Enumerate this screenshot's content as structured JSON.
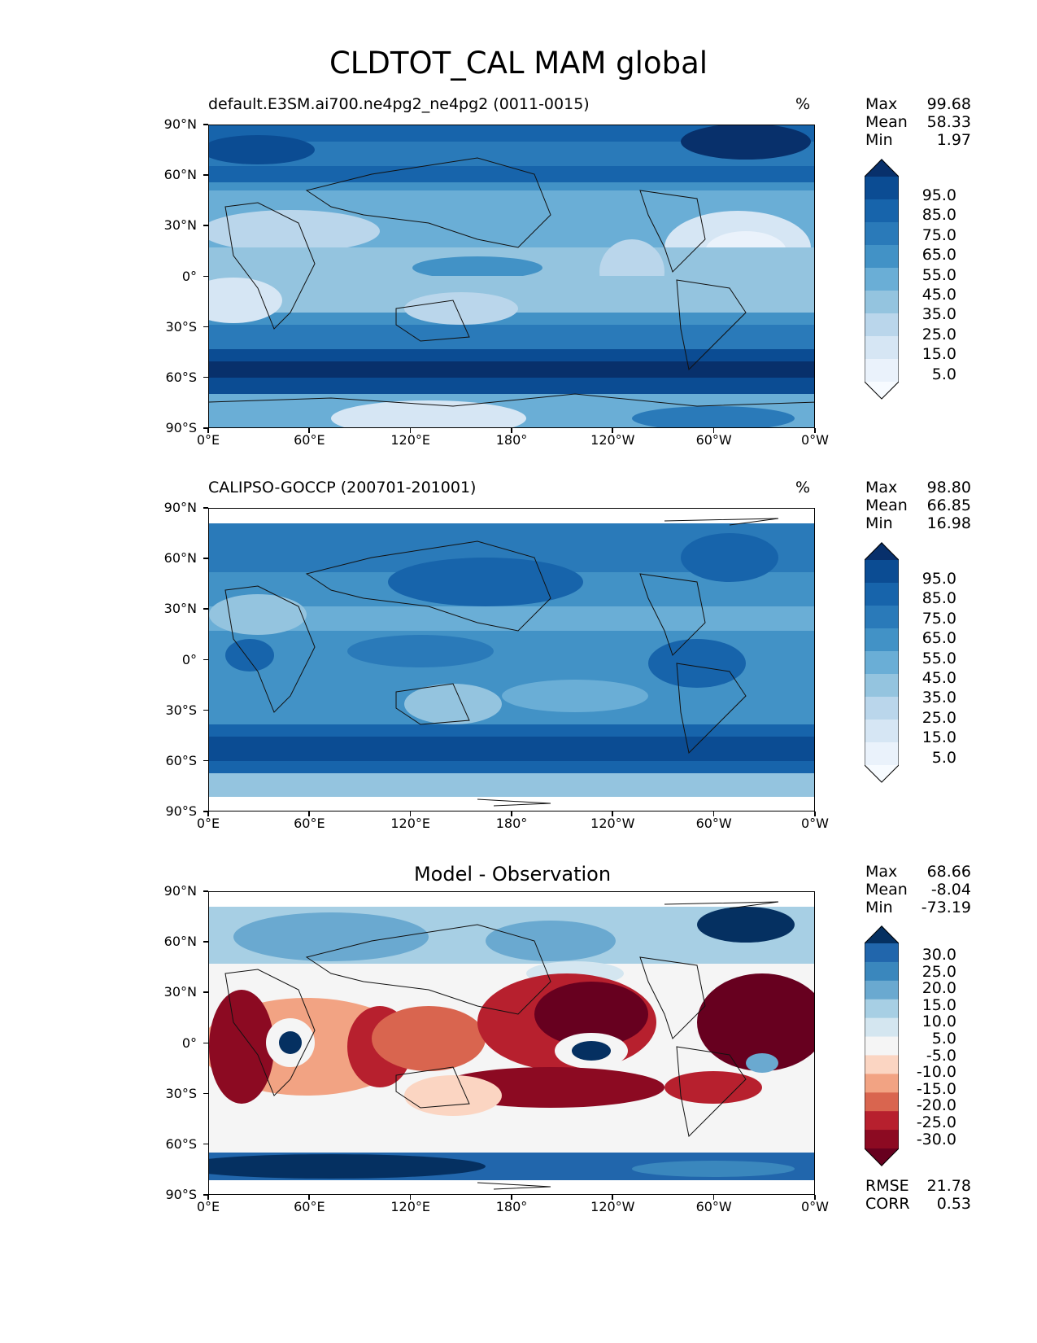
{
  "figure_title": "CLDTOT_CAL MAM global",
  "axis_ticks": {
    "lat": [
      "90°N",
      "60°N",
      "30°N",
      "0°",
      "30°S",
      "60°S",
      "90°S"
    ],
    "lon": [
      "0°E",
      "60°E",
      "120°E",
      "180°",
      "120°W",
      "60°W",
      "0°W"
    ]
  },
  "panels": [
    {
      "title": "default.E3SM.ai700.ne4pg2_ne4pg2 (0011-0015)",
      "units": "%",
      "stats": {
        "max_label": "Max",
        "max": "99.68",
        "mean_label": "Mean",
        "mean": "58.33",
        "min_label": "Min",
        "min": "1.97"
      },
      "colorbar_labels": [
        "95.0",
        "85.0",
        "75.0",
        "65.0",
        "55.0",
        "45.0",
        "35.0",
        "25.0",
        "15.0",
        "5.0"
      ],
      "colors": [
        "#08306b",
        "#0b4c93",
        "#1764ab",
        "#2a7ab9",
        "#4292c6",
        "#6aaed6",
        "#94c4df",
        "#bad6eb",
        "#d6e6f4",
        "#eaf2fb",
        "#f7fbff"
      ]
    },
    {
      "title": "CALIPSO-GOCCP (200701-201001)",
      "units": "%",
      "stats": {
        "max_label": "Max",
        "max": "98.80",
        "mean_label": "Mean",
        "mean": "66.85",
        "min_label": "Min",
        "min": "16.98"
      },
      "colorbar_labels": [
        "95.0",
        "85.0",
        "75.0",
        "65.0",
        "55.0",
        "45.0",
        "35.0",
        "25.0",
        "15.0",
        "5.0"
      ],
      "colors": [
        "#08306b",
        "#0b4c93",
        "#1764ab",
        "#2a7ab9",
        "#4292c6",
        "#6aaed6",
        "#94c4df",
        "#bad6eb",
        "#d6e6f4",
        "#eaf2fb",
        "#f7fbff"
      ]
    },
    {
      "title": "Model - Observation",
      "units": "",
      "stats": {
        "max_label": "Max",
        "max": "68.66",
        "mean_label": "Mean",
        "mean": "-8.04",
        "min_label": "Min",
        "min": "-73.19"
      },
      "colorbar_labels": [
        "30.0",
        "25.0",
        "20.0",
        "15.0",
        "10.0",
        "5.0",
        "-5.0",
        "-10.0",
        "-15.0",
        "-20.0",
        "-25.0",
        "-30.0"
      ],
      "colors": [
        "#053061",
        "#2166ac",
        "#3a87bd",
        "#6aa9d0",
        "#a7cfe4",
        "#d4e6f0",
        "#f5f5f5",
        "#fbd5c2",
        "#f2a383",
        "#d9654f",
        "#b7202e",
        "#8c0a22",
        "#67001f"
      ],
      "metrics": {
        "rmse_label": "RMSE",
        "rmse": "21.78",
        "corr_label": "CORR",
        "corr": "0.53"
      }
    }
  ]
}
